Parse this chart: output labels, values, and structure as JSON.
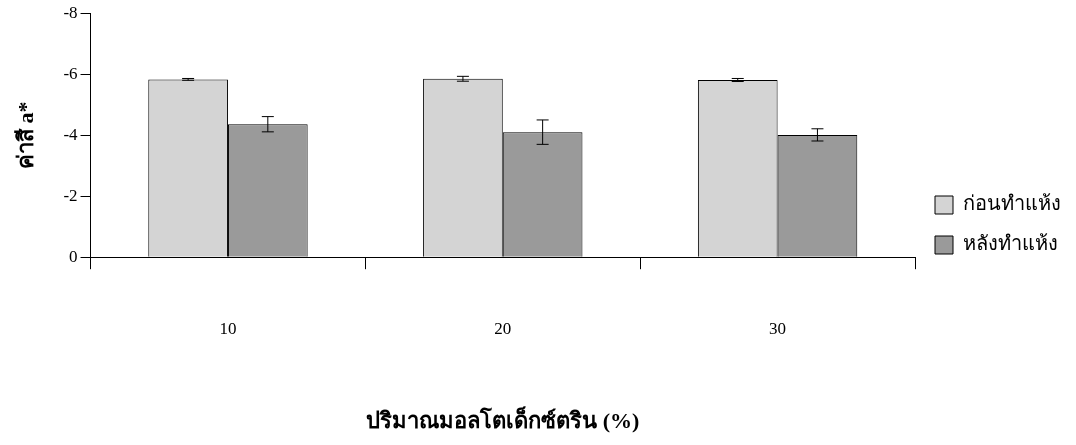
{
  "chart_data": {
    "type": "bar",
    "xlabel": "ปริมาณมอลโตเด็กซ์ตริน (%)",
    "ylabel": "ค่าสี a*",
    "categories": [
      "10",
      "20",
      "30"
    ],
    "series": [
      {
        "name": "ก่อนทำแห้ง",
        "color": "#d4d4d4",
        "values": [
          -5.83,
          -5.85,
          -5.81
        ],
        "errors": [
          0.03,
          0.08,
          0.05
        ]
      },
      {
        "name": "หลังทำแห้ง",
        "color": "#9a9a9a",
        "values": [
          -4.36,
          -4.1,
          -4.01
        ],
        "errors": [
          0.25,
          0.4,
          0.2
        ]
      }
    ],
    "ylim": [
      0,
      -8
    ],
    "yticks": [
      0,
      -2,
      -4,
      -6,
      -8
    ],
    "grid": false,
    "legend": "right"
  }
}
